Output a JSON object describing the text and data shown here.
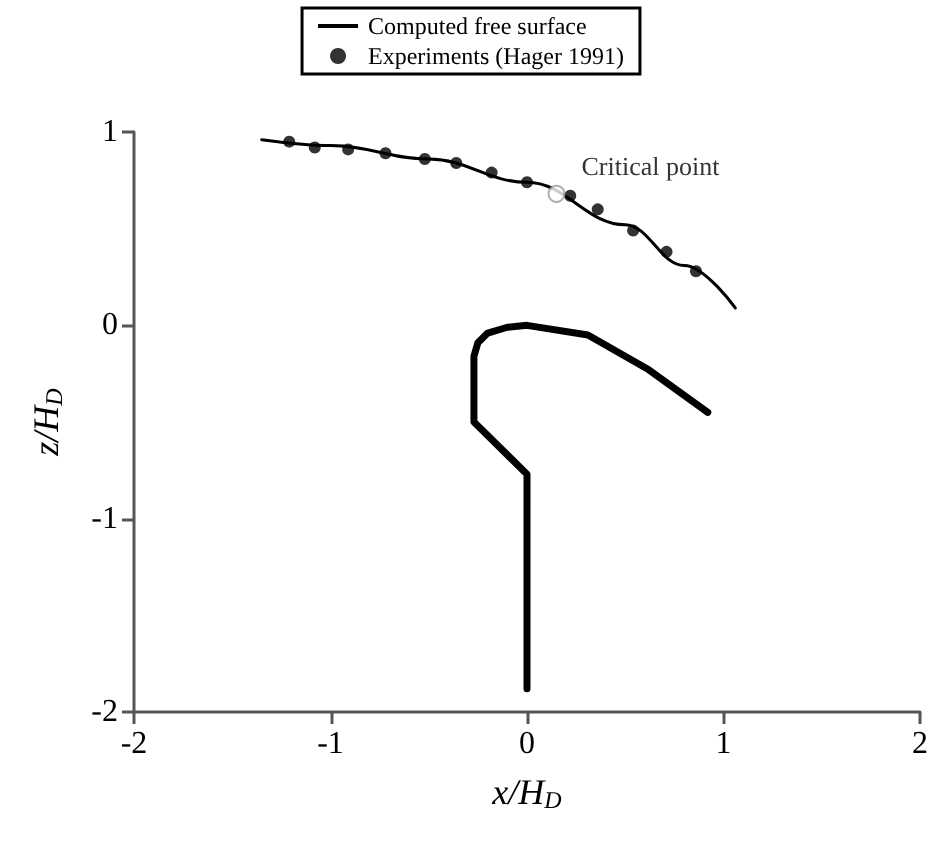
{
  "chart_data": {
    "type": "line",
    "xlabel": "x/H$_{D}$",
    "ylabel": "z/H$_{D}$",
    "xlim": [
      -2,
      2
    ],
    "xticks": [
      -2,
      -1,
      0,
      1,
      2
    ],
    "ylim": [
      -2,
      1
    ],
    "yticks": [
      -2,
      -1,
      0,
      1
    ],
    "grid": false,
    "legend": "top",
    "annotations": [
      {
        "text": "Critical point",
        "x": 0.15,
        "y": 0.68
      }
    ],
    "series": [
      {
        "name": "Computed free surface",
        "color": "#000000",
        "marker": "none",
        "x": [
          -1.35,
          -1.0,
          -0.5,
          0.0,
          0.5,
          0.8,
          1.06
        ],
        "values": [
          0.96,
          0.93,
          0.86,
          0.74,
          0.52,
          0.31,
          0.09
        ]
      },
      {
        "name": "Experiments (Hager 1991)",
        "type": "scatter",
        "color": "#000000",
        "marker": "circle",
        "x": [
          -1.21,
          -1.08,
          -0.91,
          -0.72,
          -0.52,
          -0.36,
          -0.18,
          0.0,
          0.22,
          0.36,
          0.54,
          0.71,
          0.86
        ],
        "values": [
          0.95,
          0.92,
          0.91,
          0.89,
          0.86,
          0.84,
          0.79,
          0.74,
          0.67,
          0.6,
          0.49,
          0.38,
          0.28
        ]
      },
      {
        "color": "#000000",
        "marker": "none",
        "x": [
          0.0,
          0.0,
          -0.27,
          -0.27,
          -0.25,
          -0.2,
          -0.1,
          0.0,
          0.31,
          0.62,
          0.92
        ],
        "values": [
          -1.88,
          -0.77,
          -0.5,
          -0.16,
          -0.09,
          -0.04,
          -0.01,
          0.0,
          -0.05,
          -0.23,
          -0.45
        ]
      }
    ]
  }
}
